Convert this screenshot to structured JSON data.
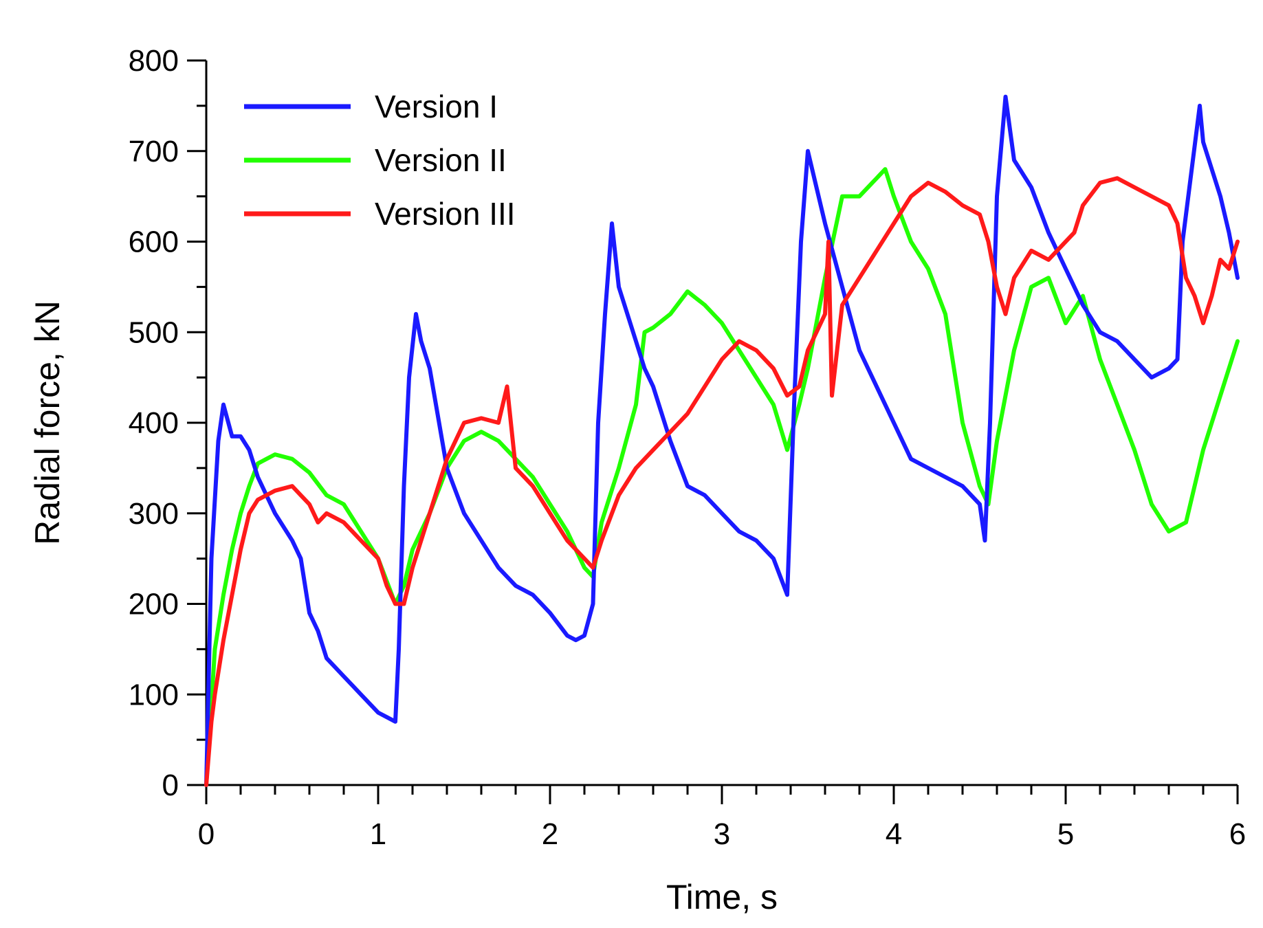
{
  "chart_data": {
    "type": "line",
    "xlabel": "Time, s",
    "ylabel": "Radial force, kN",
    "xlim": [
      0,
      6
    ],
    "ylim": [
      0,
      800
    ],
    "xticks": [
      "0",
      "1",
      "2",
      "3",
      "4",
      "5",
      "6"
    ],
    "yticks": [
      "0",
      "100",
      "200",
      "300",
      "400",
      "500",
      "600",
      "700",
      "800"
    ],
    "xtick_values": [
      0,
      1,
      2,
      3,
      4,
      5,
      6
    ],
    "ytick_values": [
      0,
      100,
      200,
      300,
      400,
      500,
      600,
      700,
      800
    ],
    "grid": false,
    "legend_position": "top-left",
    "series": [
      {
        "name": "Version I",
        "color": "#1a1aff",
        "x": [
          0,
          0.03,
          0.07,
          0.1,
          0.15,
          0.2,
          0.25,
          0.3,
          0.35,
          0.4,
          0.5,
          0.55,
          0.6,
          0.65,
          0.7,
          0.75,
          0.8,
          0.85,
          0.9,
          0.95,
          1.0,
          1.05,
          1.1,
          1.12,
          1.15,
          1.18,
          1.22,
          1.25,
          1.3,
          1.4,
          1.5,
          1.6,
          1.7,
          1.8,
          1.9,
          2.0,
          2.1,
          2.15,
          2.2,
          2.25,
          2.28,
          2.32,
          2.36,
          2.4,
          2.45,
          2.5,
          2.55,
          2.6,
          2.7,
          2.8,
          2.9,
          3.0,
          3.1,
          3.2,
          3.3,
          3.38,
          3.42,
          3.46,
          3.5,
          3.55,
          3.6,
          3.7,
          3.8,
          3.9,
          4.0,
          4.1,
          4.2,
          4.3,
          4.4,
          4.5,
          4.53,
          4.56,
          4.6,
          4.65,
          4.7,
          4.8,
          4.9,
          5.0,
          5.1,
          5.2,
          5.3,
          5.4,
          5.5,
          5.6,
          5.65,
          5.68,
          5.72,
          5.78,
          5.8,
          5.85,
          5.9,
          5.95,
          6.0
        ],
        "y": [
          0,
          250,
          380,
          420,
          385,
          385,
          370,
          340,
          320,
          300,
          270,
          250,
          190,
          170,
          140,
          130,
          120,
          110,
          100,
          90,
          80,
          75,
          70,
          150,
          330,
          450,
          520,
          490,
          460,
          350,
          300,
          270,
          240,
          220,
          210,
          190,
          165,
          160,
          165,
          200,
          400,
          520,
          620,
          550,
          520,
          490,
          460,
          440,
          380,
          330,
          320,
          300,
          280,
          270,
          250,
          210,
          420,
          600,
          700,
          660,
          620,
          550,
          480,
          440,
          400,
          360,
          350,
          340,
          330,
          310,
          270,
          400,
          650,
          760,
          690,
          660,
          610,
          570,
          530,
          500,
          490,
          470,
          450,
          460,
          470,
          600,
          660,
          750,
          710,
          680,
          650,
          610,
          560
        ]
      },
      {
        "name": "Version II",
        "color": "#22ff00",
        "x": [
          0,
          0.05,
          0.1,
          0.15,
          0.2,
          0.25,
          0.3,
          0.35,
          0.4,
          0.5,
          0.6,
          0.7,
          0.8,
          0.9,
          1.0,
          1.05,
          1.1,
          1.15,
          1.2,
          1.3,
          1.4,
          1.5,
          1.6,
          1.7,
          1.8,
          1.9,
          2.0,
          2.1,
          2.2,
          2.25,
          2.3,
          2.4,
          2.5,
          2.55,
          2.6,
          2.7,
          2.8,
          2.9,
          3.0,
          3.1,
          3.2,
          3.3,
          3.38,
          3.45,
          3.5,
          3.6,
          3.7,
          3.8,
          3.9,
          3.95,
          4.0,
          4.1,
          4.2,
          4.3,
          4.4,
          4.5,
          4.55,
          4.6,
          4.7,
          4.8,
          4.9,
          5.0,
          5.1,
          5.2,
          5.3,
          5.4,
          5.5,
          5.6,
          5.7,
          5.8,
          5.9,
          6.0
        ],
        "y": [
          0,
          150,
          210,
          260,
          300,
          330,
          355,
          360,
          365,
          360,
          345,
          320,
          310,
          280,
          250,
          225,
          200,
          220,
          260,
          300,
          350,
          380,
          390,
          380,
          360,
          340,
          310,
          280,
          240,
          230,
          290,
          350,
          420,
          500,
          505,
          520,
          545,
          530,
          510,
          480,
          450,
          420,
          370,
          420,
          460,
          560,
          650,
          650,
          670,
          680,
          650,
          600,
          570,
          520,
          400,
          330,
          310,
          380,
          480,
          550,
          560,
          510,
          540,
          470,
          420,
          370,
          310,
          280,
          290,
          370,
          430,
          490
        ]
      },
      {
        "name": "Version III",
        "color": "#ff1a1a",
        "x": [
          0,
          0.03,
          0.05,
          0.1,
          0.15,
          0.2,
          0.25,
          0.3,
          0.35,
          0.4,
          0.5,
          0.55,
          0.6,
          0.65,
          0.7,
          0.8,
          0.9,
          1.0,
          1.05,
          1.1,
          1.15,
          1.2,
          1.3,
          1.4,
          1.5,
          1.6,
          1.7,
          1.75,
          1.8,
          1.9,
          2.0,
          2.1,
          2.2,
          2.25,
          2.3,
          2.4,
          2.5,
          2.6,
          2.7,
          2.8,
          2.9,
          3.0,
          3.1,
          3.2,
          3.3,
          3.38,
          3.45,
          3.5,
          3.55,
          3.6,
          3.62,
          3.64,
          3.7,
          3.8,
          3.9,
          4.0,
          4.1,
          4.2,
          4.3,
          4.4,
          4.5,
          4.55,
          4.6,
          4.65,
          4.7,
          4.8,
          4.9,
          5.0,
          5.05,
          5.1,
          5.2,
          5.3,
          5.4,
          5.5,
          5.6,
          5.65,
          5.7,
          5.75,
          5.8,
          5.85,
          5.9,
          5.95,
          6.0
        ],
        "y": [
          0,
          70,
          100,
          160,
          210,
          260,
          300,
          315,
          320,
          325,
          330,
          320,
          310,
          290,
          300,
          290,
          270,
          250,
          220,
          200,
          200,
          240,
          300,
          360,
          400,
          405,
          400,
          440,
          350,
          330,
          300,
          270,
          250,
          240,
          270,
          320,
          350,
          370,
          390,
          410,
          440,
          470,
          490,
          480,
          460,
          430,
          440,
          480,
          500,
          520,
          600,
          430,
          530,
          560,
          590,
          620,
          650,
          665,
          655,
          640,
          630,
          600,
          550,
          520,
          560,
          590,
          580,
          600,
          610,
          640,
          665,
          670,
          660,
          650,
          640,
          620,
          560,
          540,
          510,
          540,
          580,
          570,
          600
        ]
      }
    ]
  }
}
